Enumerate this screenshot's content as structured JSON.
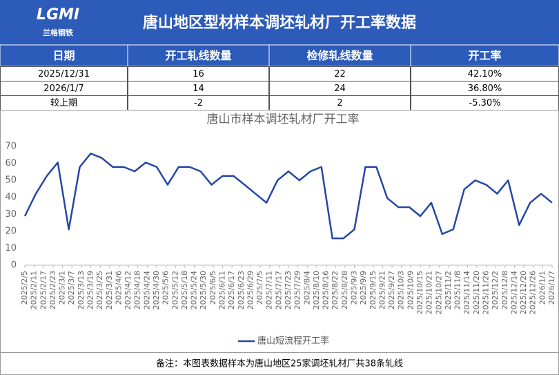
{
  "header": {
    "logo": "LGMI",
    "logo_caption": "兰格钢铁",
    "title": "唐山地区型材样本调坯轧材厂开工率数据"
  },
  "table": {
    "columns": [
      "日期",
      "开工轧线数量",
      "检修轧线数量",
      "开工率"
    ],
    "rows": [
      [
        "2025/12/31",
        "16",
        "22",
        "42.10%"
      ],
      [
        "2026/1/7",
        "14",
        "24",
        "36.80%"
      ],
      [
        "较上期",
        "-2",
        "2",
        "-5.30%"
      ]
    ]
  },
  "chart_data": {
    "type": "line",
    "title": "唐山市样本调坯轧材厂开工率",
    "x": [
      "2025/2/5",
      "2025/2/12",
      "2025/2/19",
      "2025/2/26",
      "2025/3/5",
      "2025/3/12",
      "2025/3/19",
      "2025/3/26",
      "2025/4/2",
      "2025/4/9",
      "2025/4/16",
      "2025/4/23",
      "2025/4/30",
      "2025/5/7",
      "2025/5/14",
      "2025/5/21",
      "2025/5/28",
      "2025/6/4",
      "2025/6/11",
      "2025/6/18",
      "2025/6/25",
      "2025/7/2",
      "2025/7/9",
      "2025/7/16",
      "2025/7/23",
      "2025/7/30",
      "2025/8/6",
      "2025/8/13",
      "2025/8/20",
      "2025/8/27",
      "2025/9/3",
      "2025/9/10",
      "2025/9/17",
      "2025/9/24",
      "2025/10/1",
      "2025/10/8",
      "2025/10/15",
      "2025/10/22",
      "2025/10/29",
      "2025/11/5",
      "2025/11/12",
      "2025/11/19",
      "2025/11/26",
      "2025/12/3",
      "2025/12/10",
      "2025/12/17",
      "2025/12/24",
      "2025/12/31",
      "2026/1/7"
    ],
    "series": [
      {
        "name": "唐山短流程开工率",
        "color": "#2546a8",
        "values": [
          28.9,
          42.1,
          52.6,
          60.5,
          21.1,
          57.9,
          65.8,
          63.2,
          57.9,
          57.9,
          55.3,
          60.5,
          57.9,
          47.4,
          57.9,
          57.9,
          55.3,
          47.4,
          52.6,
          52.6,
          47.4,
          42.1,
          36.8,
          50,
          55.3,
          50,
          55.3,
          57.9,
          15.8,
          15.8,
          21.1,
          57.9,
          57.9,
          39.5,
          34.2,
          34.2,
          28.9,
          36.8,
          18.4,
          21.1,
          44.7,
          50,
          47.4,
          42.1,
          50,
          23.7,
          36.8,
          42.1,
          36.8
        ]
      }
    ],
    "xlim": [
      "2025/2/5",
      "2026/1/7"
    ],
    "xticks": [
      "2025/2/5",
      "2025/2/11",
      "2025/2/17",
      "2025/2/23",
      "2025/3/1",
      "2025/3/7",
      "2025/3/13",
      "2025/3/19",
      "2025/3/25",
      "2025/3/31",
      "2025/4/6",
      "2025/4/12",
      "2025/4/18",
      "2025/4/24",
      "2025/4/30",
      "2025/5/6",
      "2025/5/12",
      "2025/5/18",
      "2025/5/24",
      "2025/5/30",
      "2025/6/5",
      "2025/6/11",
      "2025/6/17",
      "2025/6/23",
      "2025/6/29",
      "2025/7/5",
      "2025/7/11",
      "2025/7/17",
      "2025/7/23",
      "2025/7/29",
      "2025/8/4",
      "2025/8/10",
      "2025/8/16",
      "2025/8/22",
      "2025/8/28",
      "2025/9/3",
      "2025/9/9",
      "2025/9/15",
      "2025/9/21",
      "2025/9/27",
      "2025/10/3",
      "2025/10/9",
      "2025/10/15",
      "2025/10/21",
      "2025/10/27",
      "2025/11/2",
      "2025/11/8",
      "2025/11/14",
      "2025/11/20",
      "2025/11/26",
      "2025/12/2",
      "2025/12/8",
      "2025/12/14",
      "2025/12/20",
      "2025/12/26",
      "2026/1/1",
      "2026/1/7"
    ],
    "ylim": [
      0,
      75
    ],
    "yticks": [
      0,
      10,
      20,
      30,
      40,
      50,
      60,
      70
    ],
    "grid": false,
    "legend": "bottom"
  },
  "footer": {
    "note": "备注：本图表数据样本为唐山地区25家调坯轧材厂共38条轧线"
  }
}
